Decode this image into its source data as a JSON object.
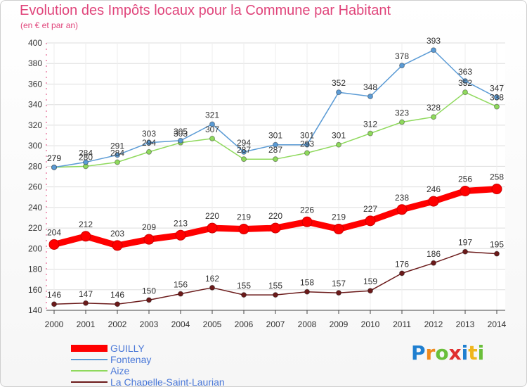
{
  "chart_data": {
    "type": "line",
    "title": "Evolution des Impôts locaux pour la Commune par Habitant",
    "subtitle": "(en € et par an)",
    "categories": [
      "2000",
      "2001",
      "2002",
      "2003",
      "2004",
      "2005",
      "2006",
      "2007",
      "2008",
      "2009",
      "2010",
      "2011",
      "2012",
      "2013",
      "2014"
    ],
    "ylim": [
      140,
      400
    ],
    "yticks": [
      140,
      160,
      180,
      200,
      220,
      240,
      260,
      280,
      300,
      320,
      340,
      360,
      380,
      400
    ],
    "grid": true,
    "legend_position": "bottom-left",
    "series": [
      {
        "name": "GUILLY",
        "color": "#ff0000",
        "values": [
          204,
          212,
          203,
          209,
          213,
          220,
          219,
          220,
          226,
          219,
          227,
          238,
          246,
          256,
          258
        ]
      },
      {
        "name": "Fontenay",
        "color": "#5b9bd5",
        "values": [
          279,
          284,
          291,
          303,
          305,
          321,
          294,
          301,
          301,
          352,
          348,
          378,
          393,
          363,
          347
        ]
      },
      {
        "name": "Aize",
        "color": "#8fd95d",
        "values": [
          279,
          280,
          284,
          294,
          303,
          307,
          287,
          287,
          293,
          301,
          312,
          323,
          328,
          352,
          338
        ]
      },
      {
        "name": "La Chapelle-Saint-Laurian",
        "color": "#6b1a1a",
        "values": [
          146,
          147,
          146,
          150,
          156,
          162,
          155,
          155,
          158,
          157,
          159,
          176,
          186,
          197,
          195
        ]
      }
    ]
  },
  "brand": {
    "letters": [
      "P",
      "r",
      "o",
      "x",
      "i",
      "t",
      "i"
    ],
    "colors": [
      "#1f7fd0",
      "#f08a1c",
      "#6abf3a",
      "#e02f2f",
      "#1f7fd0",
      "#f0b61c",
      "#6abf3a"
    ]
  },
  "colors": {
    "title": "#e0457b",
    "grid": "#dddddd",
    "axis": "#444444"
  }
}
